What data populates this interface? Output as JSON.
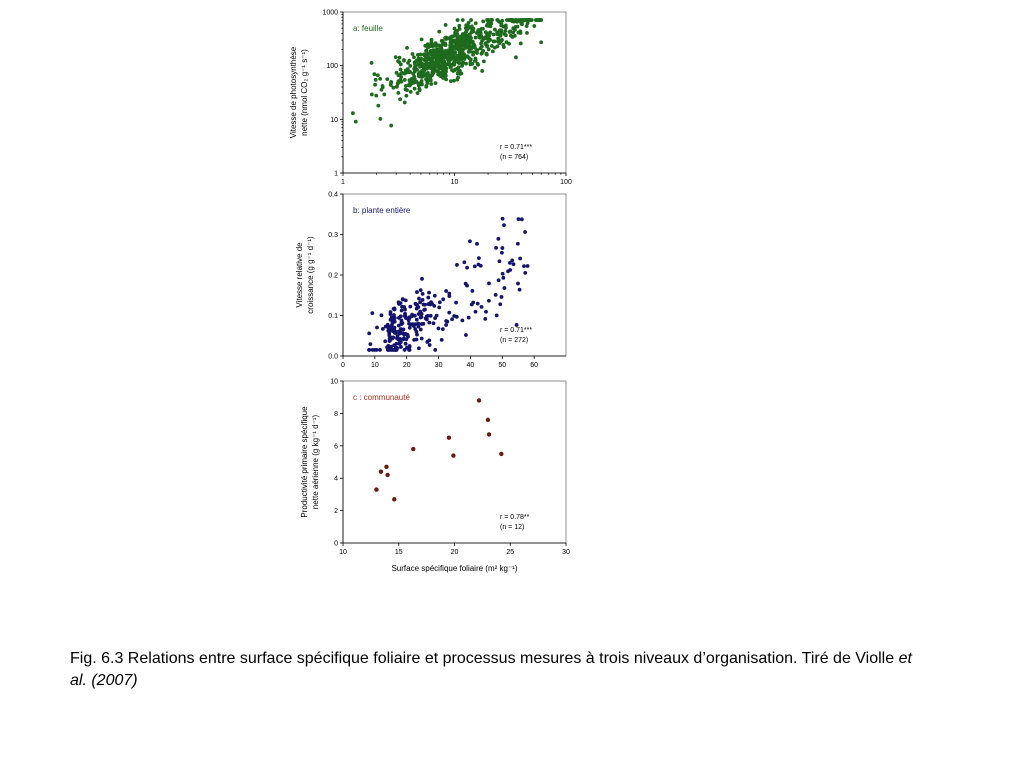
{
  "chart_data": [
    {
      "type": "scatter",
      "panel_label": "a: feuille",
      "ylabel_lines": [
        "Vitesse de photosynthèse",
        "nette (nmol CO₂ g⁻¹ s⁻¹)"
      ],
      "xlim": [
        1,
        100
      ],
      "ylim": [
        1,
        1000
      ],
      "x_scale": "log",
      "y_scale": "log",
      "x_ticks": [
        1,
        10,
        100
      ],
      "y_ticks": [
        1,
        10,
        100,
        1000
      ],
      "x_tick_labels": [
        "1",
        "10",
        "100"
      ],
      "y_tick_labels": [
        "1",
        "10",
        "100",
        "1000"
      ],
      "stat_r": "r = 0.71***",
      "stat_n": "(n = 764)",
      "point_color": "#1e6b1e",
      "label_color": "#1e6b1e",
      "n_points": 764,
      "trend": {
        "a": 1.2,
        "b": 1.05,
        "noise": 0.22,
        "x_range": [
          1.15,
          60
        ]
      }
    },
    {
      "type": "scatter",
      "panel_label": "b: plante entière",
      "ylabel_lines": [
        "Vitesse relative de",
        "croissance (g g⁻¹ d⁻¹)"
      ],
      "xlim": [
        0,
        70
      ],
      "ylim": [
        0.0,
        0.4
      ],
      "x_scale": "linear",
      "y_scale": "linear",
      "x_ticks": [
        0,
        10,
        20,
        30,
        40,
        50,
        60
      ],
      "y_ticks": [
        0.0,
        0.1,
        0.2,
        0.3,
        0.4
      ],
      "x_tick_labels": [
        "0",
        "10",
        "20",
        "30",
        "40",
        "50",
        "60"
      ],
      "y_tick_labels": [
        "0.0",
        "0.1",
        "0.2",
        "0.3",
        "0.4"
      ],
      "stat_r": "r = 0.71***",
      "stat_n": "(n = 272)",
      "point_color": "#14146e",
      "label_color": "#14146e",
      "n_points": 272,
      "trend": {
        "slope": 0.0045,
        "intercept": -0.015,
        "noise": 0.045,
        "x_range": [
          8,
          58
        ]
      }
    },
    {
      "type": "scatter",
      "panel_label": "c : communauté",
      "ylabel_lines": [
        "Productivité primaire spécifique",
        "nette aérienne (g kg⁻¹ d⁻¹)"
      ],
      "xlabel": "Surface spécifique foliaire (m² kg⁻¹)",
      "xlim": [
        10,
        30
      ],
      "ylim": [
        0,
        10
      ],
      "x_scale": "linear",
      "y_scale": "linear",
      "x_ticks": [
        10,
        15,
        20,
        25,
        30
      ],
      "y_ticks": [
        0,
        2,
        4,
        6,
        8,
        10
      ],
      "x_tick_labels": [
        "10",
        "15",
        "20",
        "25",
        "30"
      ],
      "y_tick_labels": [
        "0",
        "2",
        "4",
        "6",
        "8",
        "10"
      ],
      "stat_r": "r = 0.78**",
      "stat_n": "(n = 12)",
      "point_color": "#6b1a10",
      "label_color": "#b03020",
      "x": [
        13.0,
        13.4,
        13.9,
        14.0,
        14.6,
        16.3,
        19.5,
        19.9,
        22.2,
        23.0,
        23.1,
        24.2
      ],
      "y": [
        3.3,
        4.4,
        4.7,
        4.2,
        2.7,
        5.8,
        6.5,
        5.4,
        8.8,
        7.6,
        6.7,
        5.5
      ]
    }
  ],
  "caption": {
    "text": "Fig. 6.3 Relations entre surface spécifique foliaire et processus mesures à trois niveaux d’organisation. Tiré de Violle ",
    "italic": "et al. (2007)"
  }
}
